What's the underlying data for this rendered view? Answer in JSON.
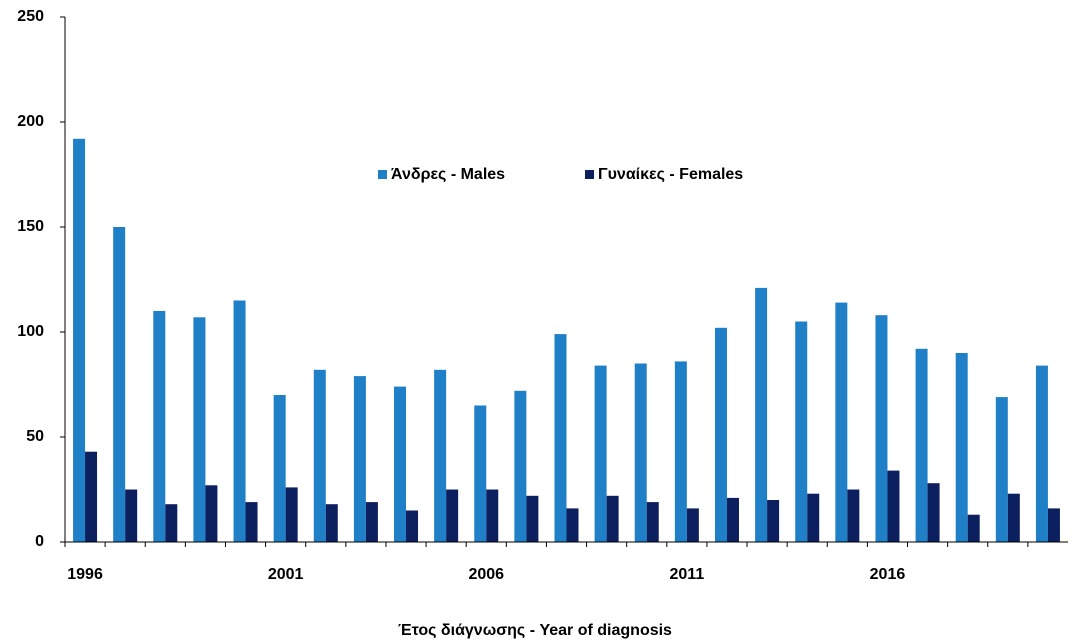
{
  "chart_data": {
    "type": "bar",
    "x_label": "Έτος διάγνωσης - Year of diagnosis",
    "categories": [
      "1996",
      null,
      null,
      null,
      null,
      "2001",
      null,
      null,
      null,
      null,
      "2006",
      null,
      null,
      null,
      null,
      "2011",
      null,
      null,
      null,
      null,
      "2016",
      null,
      null,
      null,
      null
    ],
    "series": [
      {
        "name": "Άνδρες - Males",
        "color": "#1f80c8",
        "values": [
          192,
          150,
          110,
          107,
          115,
          70,
          82,
          79,
          74,
          82,
          65,
          72,
          99,
          84,
          85,
          86,
          102,
          121,
          105,
          114,
          108,
          92,
          90,
          69,
          84
        ]
      },
      {
        "name": "Γυναίκες - Females",
        "color": "#0c1f5e",
        "values": [
          43,
          25,
          18,
          27,
          19,
          26,
          18,
          19,
          15,
          25,
          25,
          22,
          16,
          22,
          19,
          16,
          21,
          20,
          23,
          25,
          34,
          28,
          13,
          23,
          16
        ]
      }
    ],
    "ylim": [
      0,
      250
    ],
    "yticks": [
      0,
      50,
      100,
      150,
      200,
      250
    ],
    "grid": false,
    "legend": "center"
  }
}
